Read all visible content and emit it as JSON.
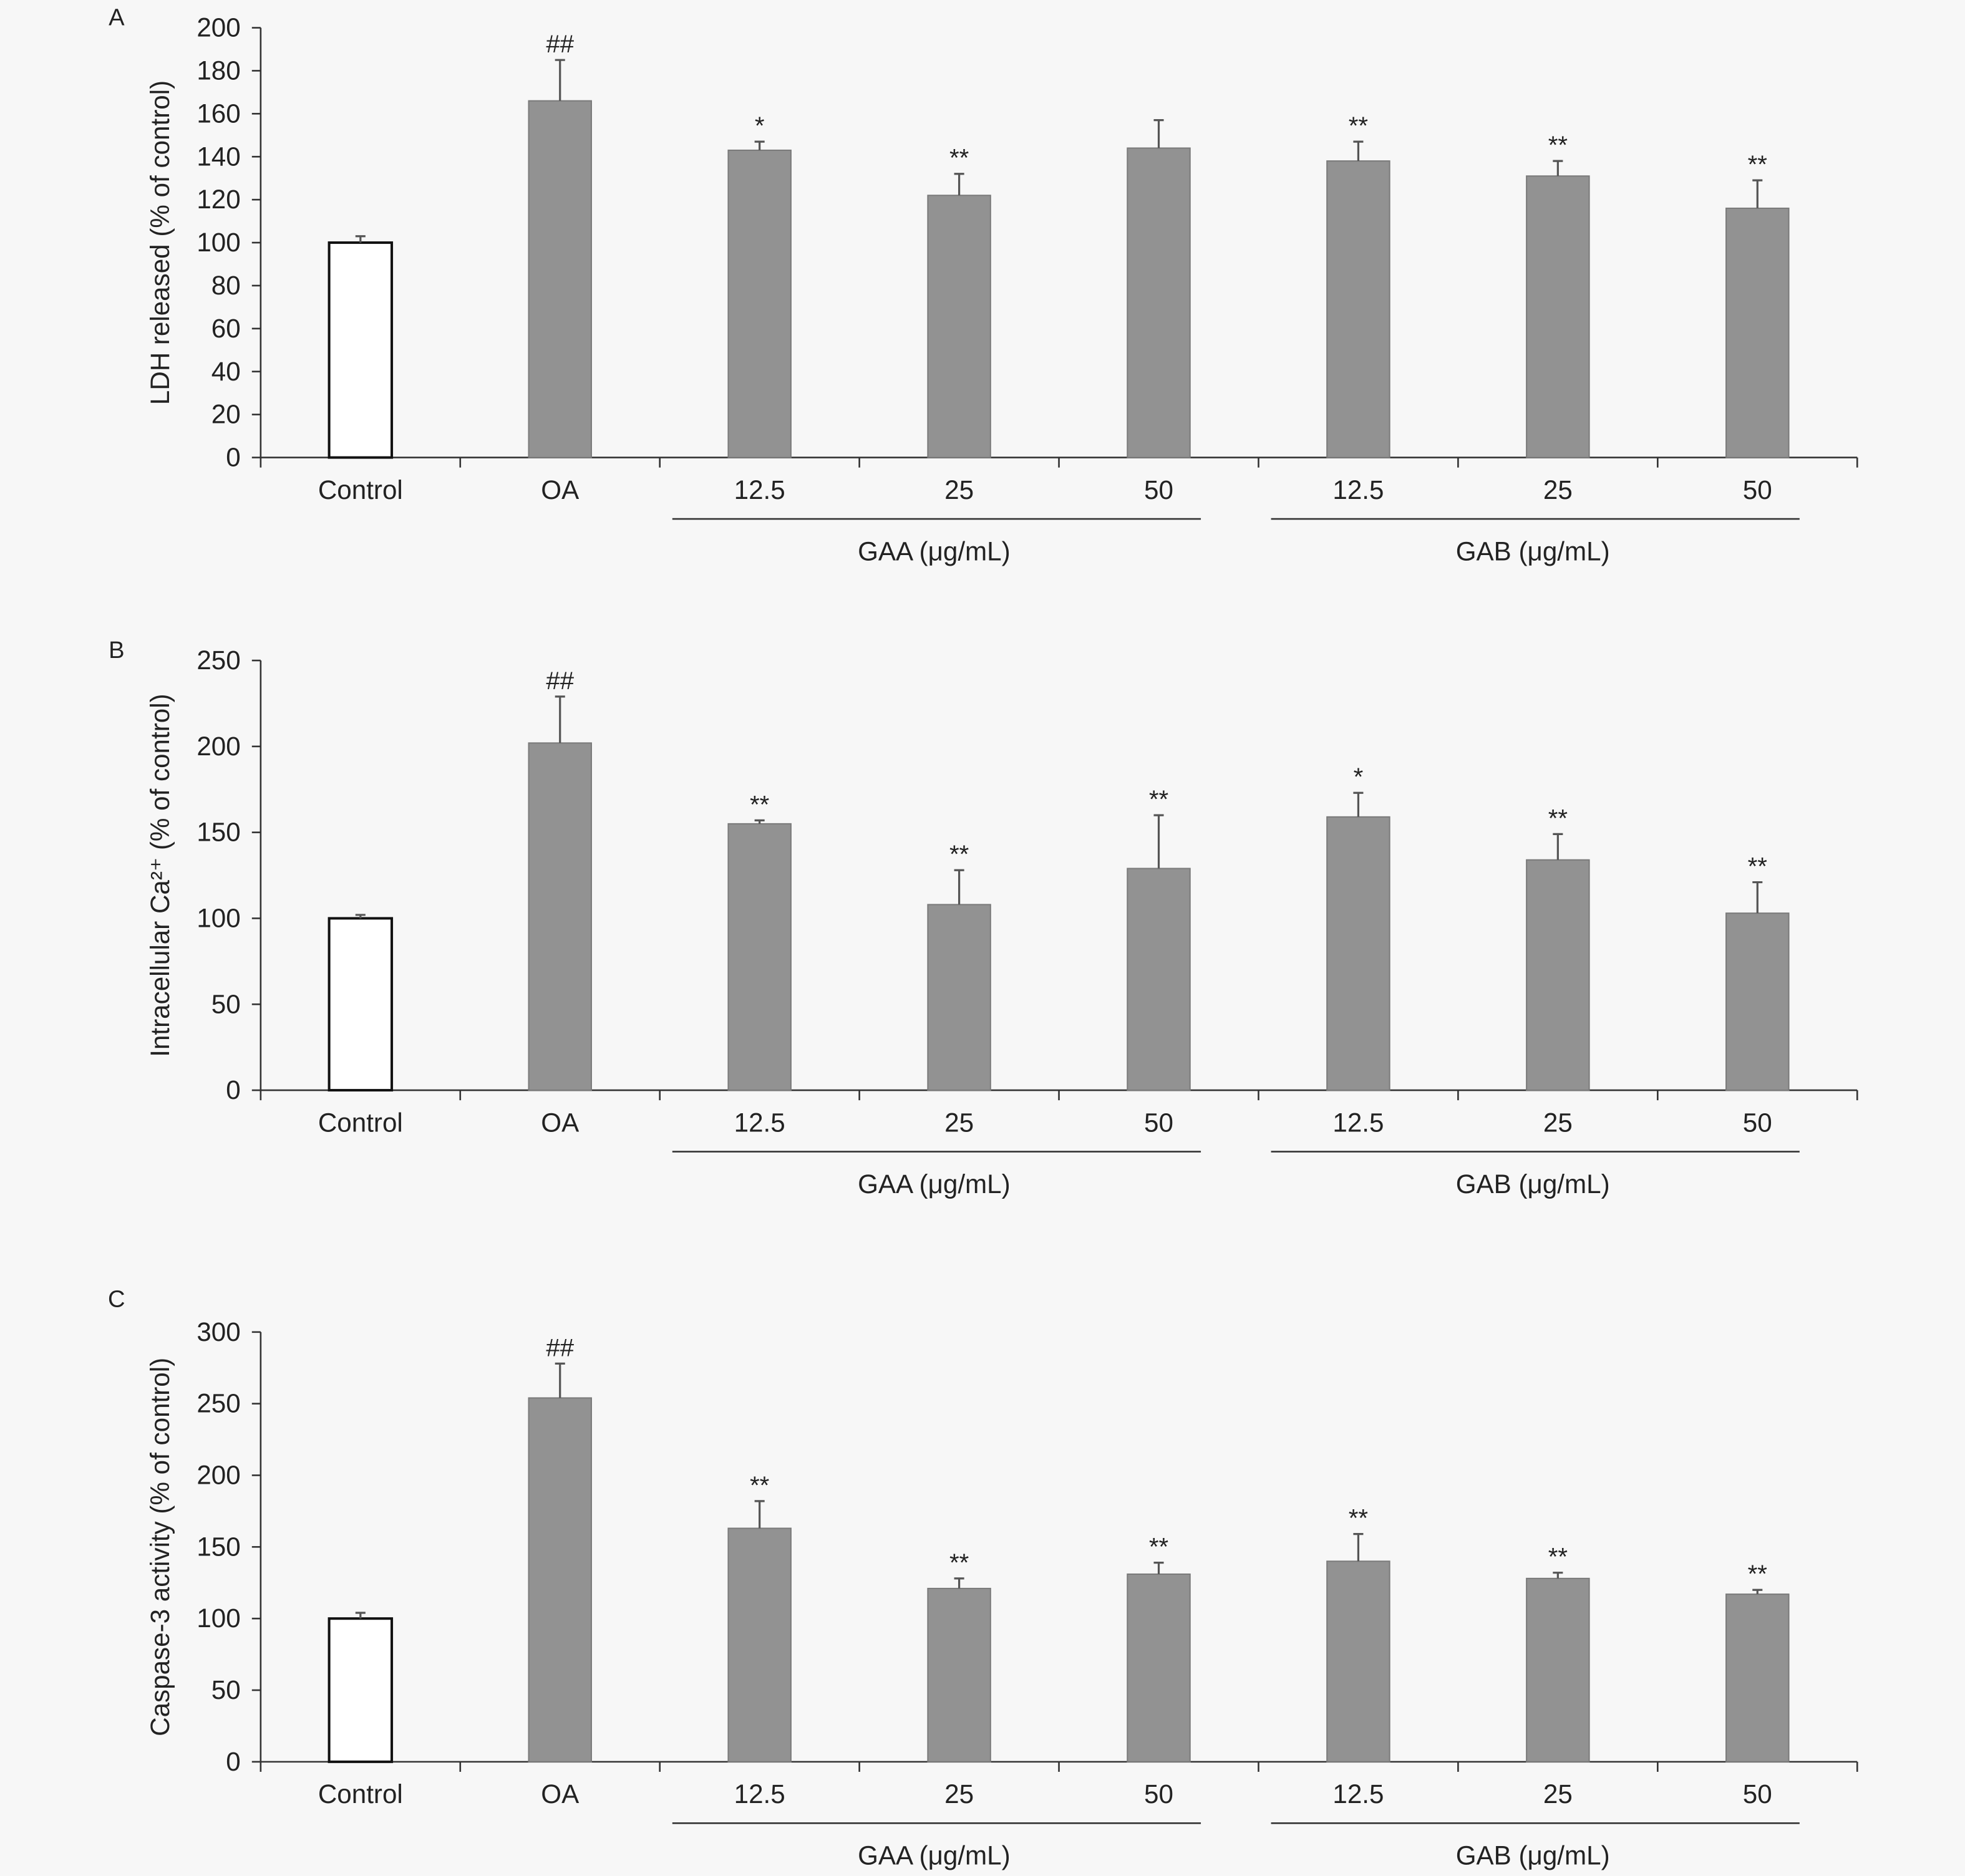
{
  "colors": {
    "control_fill": "#ffffff",
    "treatment_fill": "#929292",
    "axis": "#333333",
    "background": "#f7f7f7"
  },
  "categories": [
    "Control",
    "OA",
    "12.5",
    "25",
    "50",
    "12.5",
    "25",
    "50"
  ],
  "groups": [
    {
      "label": "GAA (μg/mL)",
      "span": [
        2,
        4
      ]
    },
    {
      "label": "GAB (μg/mL)",
      "span": [
        5,
        7
      ]
    }
  ],
  "chart_data": [
    {
      "type": "bar",
      "panel": "A",
      "ylabel": "LDH released (% of control)",
      "ylim": [
        0,
        200
      ],
      "yticks": [
        0,
        20,
        40,
        60,
        80,
        100,
        120,
        140,
        160,
        180,
        200
      ],
      "categories": [
        "Control",
        "OA",
        "12.5",
        "25",
        "50",
        "12.5",
        "25",
        "50"
      ],
      "values": [
        100,
        166,
        143,
        122,
        144,
        138,
        131,
        116
      ],
      "errors": [
        3,
        19,
        4,
        10,
        13,
        9,
        7,
        13
      ],
      "annotations": [
        "",
        "##",
        "*",
        "**",
        "",
        "**",
        "**",
        "**"
      ]
    },
    {
      "type": "bar",
      "panel": "B",
      "ylabel": "Intracellular Ca²⁺ (% of control)",
      "ylim": [
        0,
        250
      ],
      "yticks": [
        0,
        50,
        100,
        150,
        200,
        250
      ],
      "categories": [
        "Control",
        "OA",
        "12.5",
        "25",
        "50",
        "12.5",
        "25",
        "50"
      ],
      "values": [
        100,
        202,
        155,
        108,
        129,
        159,
        134,
        103
      ],
      "errors": [
        2,
        27,
        2,
        20,
        31,
        14,
        15,
        18
      ],
      "annotations": [
        "",
        "##",
        "**",
        "**",
        "**",
        "*",
        "**",
        "**"
      ]
    },
    {
      "type": "bar",
      "panel": "C",
      "ylabel": "Caspase-3 activity (% of control)",
      "ylim": [
        0,
        300
      ],
      "yticks": [
        0,
        50,
        100,
        150,
        200,
        250,
        300
      ],
      "categories": [
        "Control",
        "OA",
        "12.5",
        "25",
        "50",
        "12.5",
        "25",
        "50"
      ],
      "values": [
        100,
        254,
        163,
        121,
        131,
        140,
        128,
        117
      ],
      "errors": [
        4,
        24,
        19,
        7,
        8,
        19,
        4,
        3
      ],
      "annotations": [
        "",
        "##",
        "**",
        "**",
        "**",
        "**",
        "**",
        "**"
      ]
    }
  ]
}
